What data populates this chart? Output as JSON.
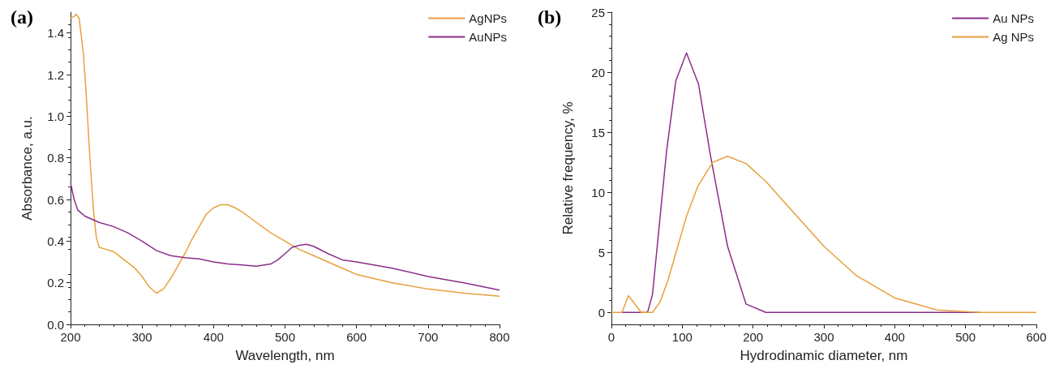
{
  "chart_data": [
    {
      "type": "line",
      "title": "(a)",
      "xlabel": "Wavelength, nm",
      "ylabel": "Absorbance, a.u.",
      "xlim": [
        200,
        800
      ],
      "xticks": [
        200,
        300,
        400,
        500,
        600,
        700,
        800
      ],
      "ylim": [
        0,
        1.5
      ],
      "yticks": [
        {
          "value": 0,
          "label": "0.0"
        },
        0.2,
        0.4,
        0.6,
        0.8,
        {
          "value": 1,
          "label": "1.0"
        },
        1.2,
        1.4
      ],
      "legend": "top right",
      "grid": false,
      "marker": "none",
      "line_style": "solid",
      "series": [
        {
          "name": "AgNPs",
          "color": "#e8a03c",
          "x": [
            200,
            205,
            208,
            212,
            218,
            222,
            227,
            232,
            236,
            240,
            250,
            260,
            275,
            290,
            300,
            310,
            320,
            330,
            340,
            350,
            360,
            370,
            380,
            390,
            400,
            410,
            420,
            430,
            440,
            460,
            480,
            500,
            520,
            540,
            560,
            580,
            600,
            650,
            700,
            750,
            800
          ],
          "values": [
            1.47,
            1.48,
            1.49,
            1.47,
            1.3,
            1.1,
            0.8,
            0.55,
            0.42,
            0.37,
            0.36,
            0.35,
            0.31,
            0.27,
            0.23,
            0.18,
            0.15,
            0.17,
            0.22,
            0.28,
            0.34,
            0.41,
            0.47,
            0.53,
            0.56,
            0.575,
            0.575,
            0.56,
            0.54,
            0.49,
            0.44,
            0.4,
            0.36,
            0.33,
            0.3,
            0.27,
            0.24,
            0.2,
            0.17,
            0.15,
            0.135
          ]
        },
        {
          "name": "AuNPs",
          "color": "#8b2d8b",
          "x": [
            200,
            205,
            210,
            220,
            240,
            260,
            280,
            300,
            320,
            340,
            360,
            380,
            400,
            420,
            440,
            460,
            480,
            490,
            500,
            510,
            520,
            530,
            540,
            560,
            580,
            600,
            650,
            700,
            750,
            800
          ],
          "values": [
            0.68,
            0.6,
            0.55,
            0.52,
            0.49,
            0.47,
            0.44,
            0.4,
            0.355,
            0.33,
            0.32,
            0.315,
            0.3,
            0.29,
            0.285,
            0.28,
            0.29,
            0.31,
            0.34,
            0.37,
            0.38,
            0.385,
            0.375,
            0.34,
            0.31,
            0.3,
            0.27,
            0.23,
            0.2,
            0.165
          ]
        }
      ]
    },
    {
      "type": "line",
      "title": "(b)",
      "xlabel": "Hydrodinamic diameter, nm",
      "ylabel": "Relative frequency, %",
      "xlim": [
        0,
        600
      ],
      "xticks": [
        0,
        100,
        200,
        300,
        400,
        500,
        600
      ],
      "ylim": [
        -1,
        25
      ],
      "yticks": [
        0,
        5,
        10,
        15,
        20,
        25
      ],
      "legend": "top right",
      "grid": false,
      "marker": "none",
      "line_style": "solid",
      "series": [
        {
          "name": "Au NPs",
          "color": "#8b2d8b",
          "x": [
            14,
            51,
            58,
            78,
            91,
            106,
            123,
            140,
            164,
            190,
            218,
            520
          ],
          "values": [
            0,
            0,
            1.5,
            13.5,
            19.3,
            21.6,
            19,
            13,
            5.5,
            0.7,
            0,
            0
          ]
        },
        {
          "name": "Ag NPs",
          "color": "#e8a03c",
          "x": [
            0,
            15,
            24,
            42,
            58,
            69,
            80,
            106,
            122,
            143,
            164,
            190,
            218,
            300,
            345,
            400,
            460,
            520,
            600
          ],
          "values": [
            0,
            0,
            1.4,
            0,
            0,
            0.9,
            2.7,
            8,
            10.5,
            12.5,
            13,
            12.4,
            10.9,
            5.5,
            3.1,
            1.2,
            0.2,
            0,
            0
          ]
        }
      ]
    }
  ]
}
